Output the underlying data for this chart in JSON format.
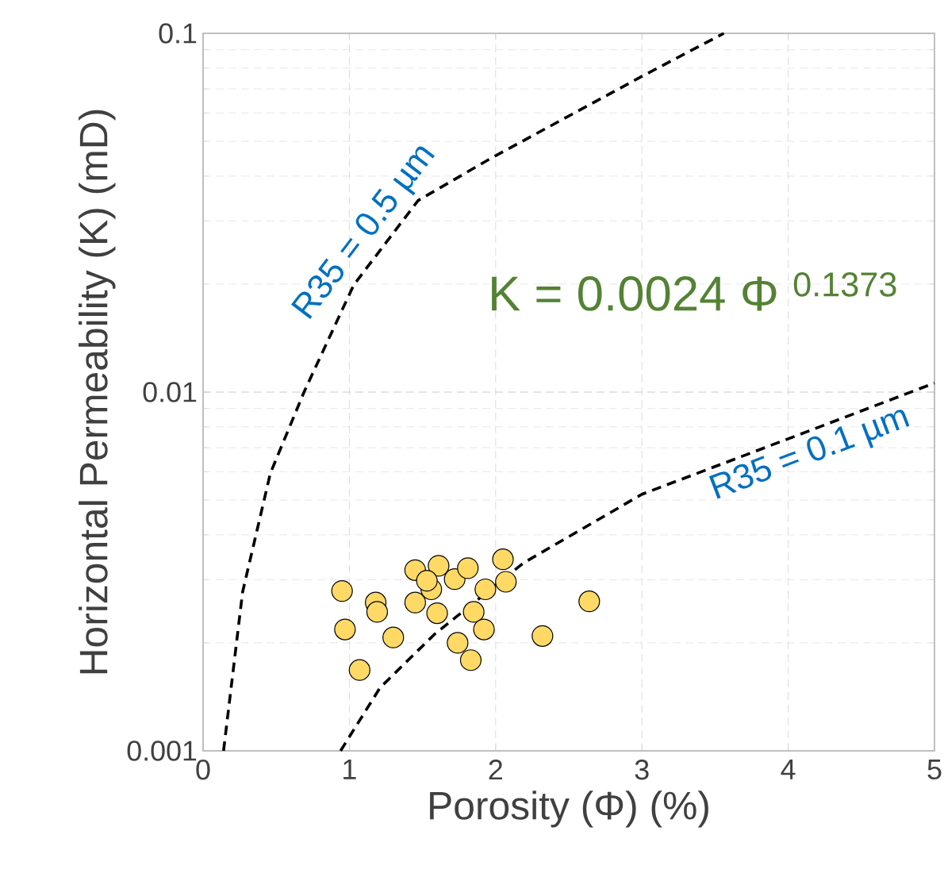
{
  "chart_data": {
    "type": "scatter",
    "xlabel": "Porosity (Φ) (%)",
    "ylabel": "Horizontal Permeability (K) (mD)",
    "annotations": [
      "K = 0.0024 Φ $^{0.1373}$"
    ],
    "log": "y",
    "grid": true,
    "marker": "circle",
    "xlim": [
      0,
      5
    ],
    "xticks": [
      0,
      1,
      2,
      3,
      4,
      5
    ],
    "ylim": [
      0.001,
      0.1
    ],
    "yticks": [
      0.001,
      0.01,
      0.1
    ],
    "series": [
      {
        "color": "#ffd966",
        "x": [
          0.95,
          0.97,
          1.07,
          1.18,
          1.19,
          1.3,
          1.45,
          1.45,
          1.61,
          1.6,
          1.56,
          1.72,
          1.81,
          1.85,
          1.74,
          1.83,
          1.92,
          2.05,
          2.07,
          1.93,
          2.32,
          2.64,
          1.53
        ],
        "values": [
          0.00279,
          0.00218,
          0.00168,
          0.00259,
          0.00244,
          0.00207,
          0.00319,
          0.00259,
          0.00328,
          0.00242,
          0.00282,
          0.00301,
          0.00323,
          0.00244,
          0.002,
          0.00179,
          0.00218,
          0.00342,
          0.00296,
          0.00282,
          0.00209,
          0.00261,
          0.00298
        ]
      },
      {
        "type": "line",
        "name": "R35 = 0.5 µm",
        "color": "#000000",
        "line_style": "dashed",
        "marker": "none",
        "x": [
          0.14,
          0.27,
          0.46,
          0.69,
          1.03,
          1.47,
          1.97,
          3.0,
          3.56
        ],
        "values": [
          0.001,
          0.00277,
          0.00594,
          0.01,
          0.0199,
          0.0342,
          0.0449,
          0.0759,
          0.1
        ]
      },
      {
        "type": "line",
        "name": "R35 = 0.1 µm",
        "color": "#000000",
        "line_style": "dashed",
        "marker": "none",
        "x": [
          0.94,
          1.21,
          1.58,
          2.19,
          3.0,
          4.0,
          5.0
        ],
        "values": [
          0.001,
          0.0015,
          0.00211,
          0.00334,
          0.00519,
          0.00741,
          0.0106
        ]
      }
    ]
  }
}
